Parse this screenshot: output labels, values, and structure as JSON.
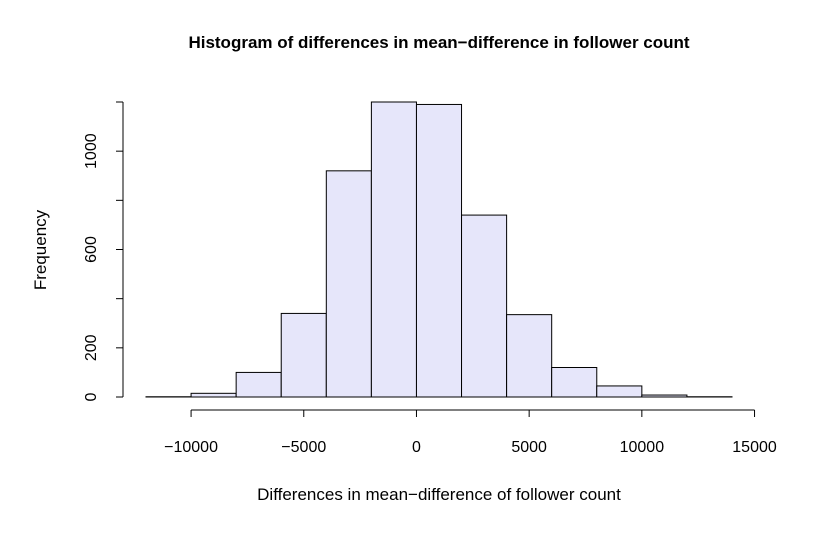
{
  "chart_data": {
    "type": "bar",
    "title": "Histogram of differences in mean−difference in follower count",
    "xlabel": "Differences in mean−difference of follower count",
    "ylabel": "Frequency",
    "bin_edges": [
      -12000,
      -10000,
      -8000,
      -6000,
      -4000,
      -2000,
      0,
      2000,
      4000,
      6000,
      8000,
      10000,
      12000,
      14000
    ],
    "values": [
      1,
      15,
      100,
      340,
      920,
      1200,
      1190,
      740,
      335,
      120,
      45,
      8,
      1
    ],
    "xlim": [
      -12000,
      14000
    ],
    "ylim": [
      0,
      1200
    ],
    "x_ticks": [
      -10000,
      -5000,
      0,
      5000,
      10000,
      15000
    ],
    "x_tick_labels": [
      "−10000",
      "−5000",
      "0",
      "5000",
      "10000",
      "15000"
    ],
    "y_ticks": [
      0,
      200,
      600,
      1000
    ],
    "y_minor_ticks": [
      400,
      800,
      1200
    ],
    "y_tick_labels": [
      "0",
      "200",
      "600",
      "1000"
    ],
    "bar_fill": "#e6e6fa",
    "grid": false
  }
}
